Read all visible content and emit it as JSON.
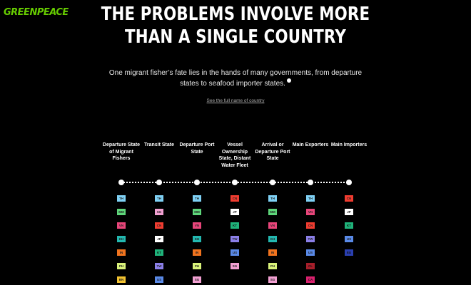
{
  "brand": {
    "logo_text": "GREENPEACE",
    "accent": "#66cc00"
  },
  "header": {
    "title": "THE PROBLEMS INVOLVE MORE THAN A SINGLE COUNTRY",
    "subtitle": "One migrant fisher’s fate lies in the hands of many governments, from departure states to seafood importer states.",
    "link": "See the full name of country"
  },
  "columns": [
    {
      "label": "Departure State of Migrant Fishers",
      "badges": [
        "TH",
        "MM",
        "VN",
        "KH",
        "IN",
        "PH",
        "BN"
      ]
    },
    {
      "label": "Transit State",
      "badges": [
        "TH",
        "SG",
        "CN",
        "JP",
        "KT",
        "TW",
        "US"
      ]
    },
    {
      "label": "Departure Port State",
      "badges": [
        "TH",
        "MM",
        "VN",
        "KH",
        "IN",
        "PH",
        "SG"
      ]
    },
    {
      "label": "Vessel Ownership State, Distant Water Fleet",
      "badges": [
        "CN",
        "JP",
        "KT",
        "TW",
        "US",
        "SG"
      ]
    },
    {
      "label": "Arrival or Departure Port State",
      "badges": [
        "TH",
        "MM",
        "VN",
        "KH",
        "IN",
        "PH",
        "SG"
      ]
    },
    {
      "label": "Main Exporters",
      "badges": [
        "TH",
        "VN",
        "CN",
        "TW",
        "US",
        "CL",
        "CA"
      ]
    },
    {
      "label": "Main Importers",
      "badges": [
        "CN",
        "JP",
        "KT",
        "US",
        "EU"
      ]
    }
  ],
  "country_colors": {
    "TH": "#7fd1f5",
    "MM": "#5ed67a",
    "VN": "#e8457a",
    "KH": "#23b8b0",
    "IN": "#f0731e",
    "PH": "#d9f27a",
    "BN": "#f2c230",
    "SG": "#f2a0d2",
    "CN": "#f03c30",
    "JP": "#ffffff",
    "KT": "#1fb27a",
    "TW": "#8b7fe8",
    "US": "#5a8ae8",
    "CL": "#a61e2a",
    "CA": "#d9216e",
    "EU": "#2a3fb0"
  }
}
